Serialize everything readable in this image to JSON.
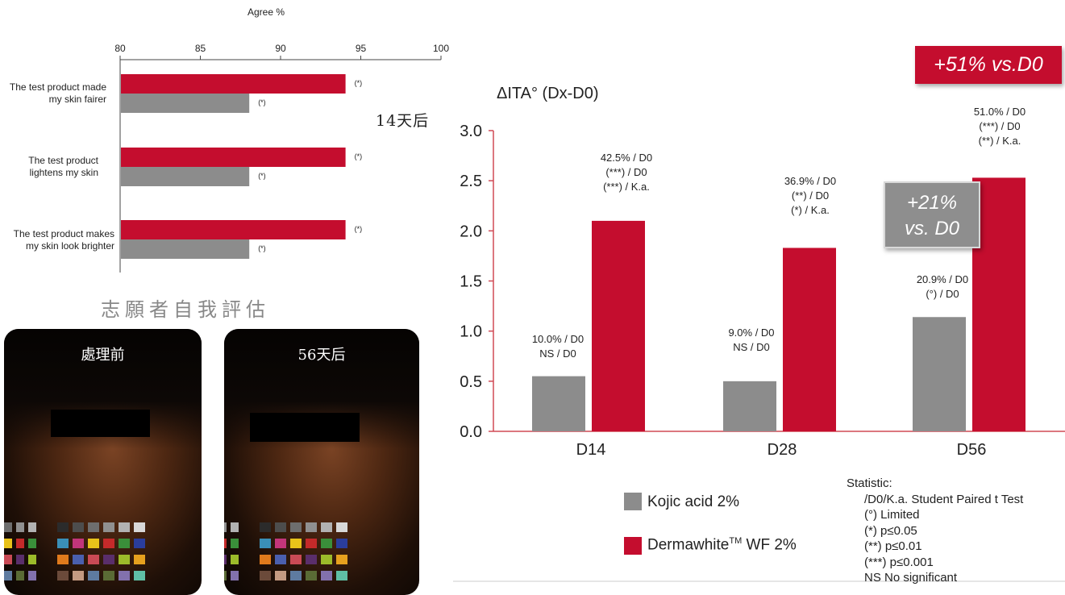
{
  "colors": {
    "red": "#c40d2e",
    "gray": "#8c8c8c",
    "axis_red": "#d04a55"
  },
  "chart_data": [
    {
      "type": "bar",
      "orientation": "horizontal",
      "title": "Agree %",
      "xlim": [
        80,
        100
      ],
      "ticks": [
        "80",
        "85",
        "90",
        "95",
        "100"
      ],
      "categories": [
        "The test product made my skin fairer",
        "The test product lightens my skin",
        "The test product makes my skin look brighter"
      ],
      "series": [
        {
          "color": "#c40d2e",
          "values": [
            94,
            94,
            94
          ],
          "labels": [
            "(*)",
            "(*)",
            "(*)"
          ]
        },
        {
          "color": "#8c8c8c",
          "values": [
            88,
            88,
            88
          ],
          "labels": [
            "(*)",
            "(*)",
            "(*)"
          ]
        }
      ],
      "side_label": "14天后",
      "caption": "志願者自我評估"
    },
    {
      "type": "bar",
      "title": "ΔITA° (Dx-D0)",
      "ylim": [
        0,
        3.0
      ],
      "ticks": [
        "0.0",
        "0.5",
        "1.0",
        "1.5",
        "2.0",
        "2.5",
        "3.0"
      ],
      "categories": [
        "D14",
        "D28",
        "D56"
      ],
      "series": [
        {
          "name": "Kojic acid 2%",
          "color": "#8c8c8c",
          "values": [
            0.55,
            0.5,
            1.14
          ]
        },
        {
          "name": "Dermawhite WF 2%",
          "color": "#c40d2e",
          "values": [
            2.1,
            1.83,
            2.53
          ]
        }
      ],
      "annotations": {
        "kojic": [
          [
            "10.0% / D0",
            "NS / D0"
          ],
          [
            "9.0% / D0",
            "NS / D0"
          ],
          [
            "20.9% / D0",
            "(°) / D0"
          ]
        ],
        "derma": [
          [
            "42.5% / D0",
            "(***) / D0",
            "(***) / K.a."
          ],
          [
            "36.9% / D0",
            "(**) / D0",
            "(*) / K.a."
          ],
          [
            "51.0% / D0",
            "(***) / D0",
            "(**) / K.a."
          ]
        ]
      },
      "callouts": {
        "red": "+51% vs.D0",
        "gray_line1": "+21%",
        "gray_line2": "vs. D0"
      }
    }
  ],
  "photos": {
    "before": "處理前",
    "after": "56天后"
  },
  "legend": {
    "kojic": "Kojic acid 2%",
    "derma_prefix": "Dermawhite",
    "derma_sup": "TM",
    "derma_suffix": " WF 2%"
  },
  "statistic": {
    "title": "Statistic:",
    "lines": [
      "/D0/K.a. Student Paired t Test",
      "(°)   Limited",
      "(*)   p≤0.05",
      "(**)  p≤0.01",
      "(***) p≤0.001",
      "NS  No significant"
    ]
  }
}
